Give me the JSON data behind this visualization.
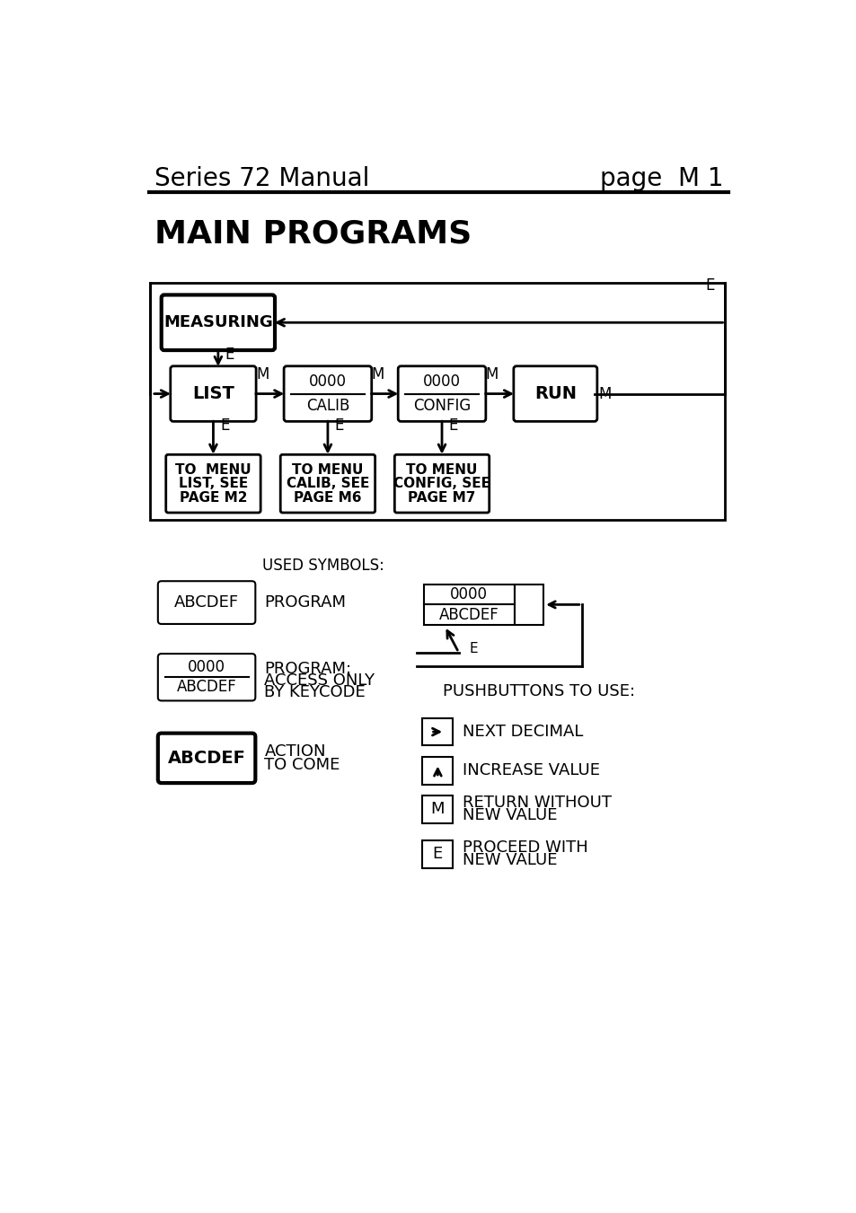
{
  "title_left": "Series 72 Manual",
  "title_right": "page  M 1",
  "main_title": "MAIN PROGRAMS",
  "bg_color": "#ffffff",
  "text_color": "#000000"
}
